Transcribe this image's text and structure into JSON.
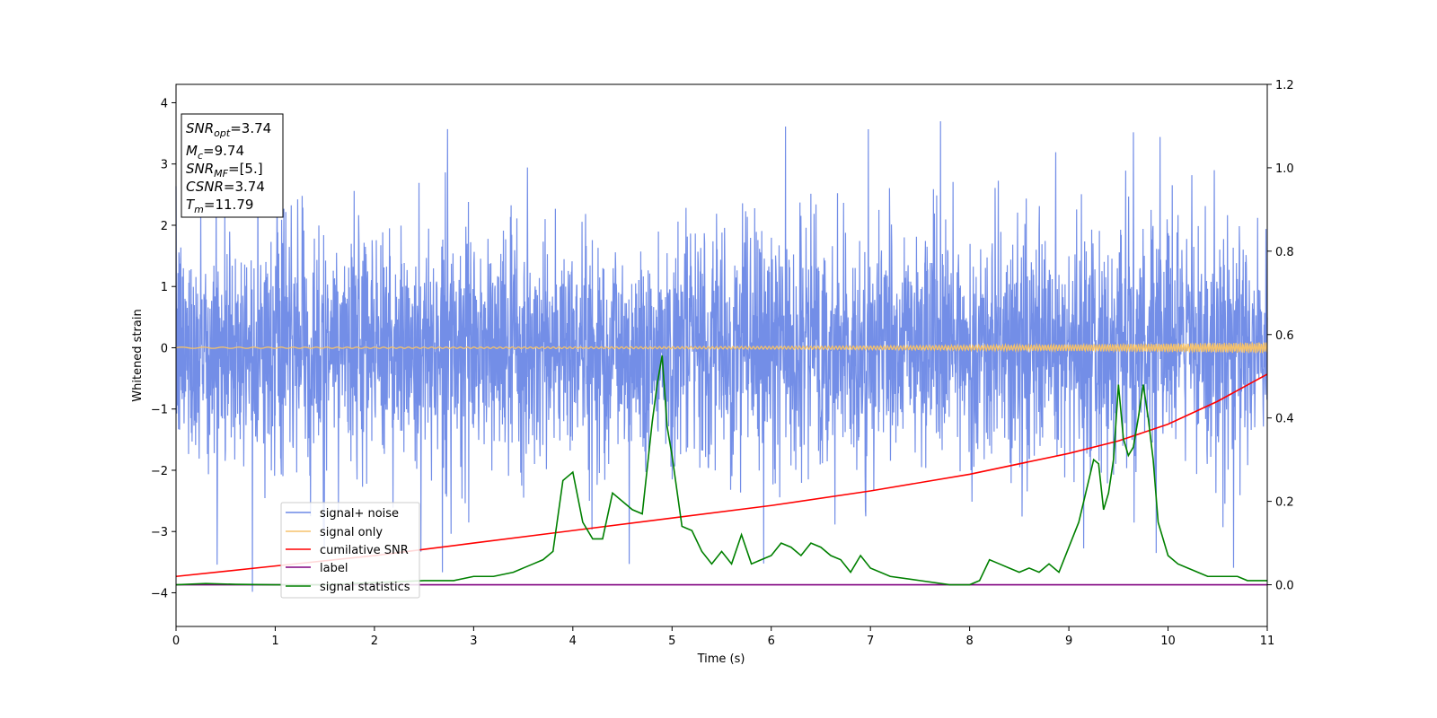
{
  "chart_data": {
    "type": "line",
    "xlabel": "Time (s)",
    "ylabel": "Whitened strain",
    "xlim": [
      0,
      11
    ],
    "ylim_left": [
      -4.55,
      4.3
    ],
    "ylim_right": [
      -0.1,
      1.2
    ],
    "x_ticks": [
      0,
      1,
      2,
      3,
      4,
      5,
      6,
      7,
      8,
      9,
      10,
      11
    ],
    "y_left_ticks": [
      -4,
      -3,
      -2,
      -1,
      0,
      1,
      2,
      3,
      4
    ],
    "y_right_ticks": [
      0.0,
      0.2,
      0.4,
      0.6,
      0.8,
      1.0,
      1.2
    ],
    "x_tick_labels": [
      "0",
      "1",
      "2",
      "3",
      "4",
      "5",
      "6",
      "7",
      "8",
      "9",
      "10",
      "11"
    ],
    "y_left_tick_labels": [
      "−4",
      "−3",
      "−2",
      "−1",
      "0",
      "1",
      "2",
      "3",
      "4"
    ],
    "y_right_tick_labels": [
      "0.0",
      "0.2",
      "0.4",
      "0.6",
      "0.8",
      "1.0",
      "1.2"
    ],
    "grid": false,
    "legend_position": "lower-left",
    "series": [
      {
        "name": "signal+ noise",
        "axis": "left",
        "color": "#6b88e6",
        "style": "dense noise band",
        "noise_band_envelope": [
          -2.4,
          2.2
        ],
        "noise_peak_extremes": [
          -4.15,
          3.9
        ]
      },
      {
        "name": "signal only",
        "axis": "left",
        "color": "#f5c26b",
        "style": "chirp",
        "amplitude_start": 0.01,
        "amplitude_end": 0.09
      },
      {
        "name": "cumilative SNR",
        "axis": "right",
        "color": "#ff0000",
        "x": [
          0,
          1,
          2,
          3,
          4,
          5,
          6,
          7,
          8,
          9,
          9.5,
          10,
          10.5,
          11
        ],
        "y": [
          0.02,
          0.045,
          0.07,
          0.1,
          0.13,
          0.16,
          0.19,
          0.225,
          0.265,
          0.315,
          0.345,
          0.385,
          0.44,
          0.505
        ]
      },
      {
        "name": "label",
        "axis": "right",
        "color": "#800080",
        "x": [
          0,
          11
        ],
        "y": [
          0.0,
          0.0
        ]
      },
      {
        "name": "signal statistics",
        "axis": "right",
        "color": "#008000",
        "x": [
          0,
          0.3,
          0.6,
          1,
          1.5,
          2,
          2.5,
          2.8,
          3,
          3.2,
          3.4,
          3.5,
          3.6,
          3.7,
          3.8,
          3.9,
          4,
          4.1,
          4.2,
          4.3,
          4.4,
          4.5,
          4.6,
          4.7,
          4.8,
          4.85,
          4.9,
          4.95,
          5,
          5.1,
          5.2,
          5.3,
          5.4,
          5.5,
          5.6,
          5.7,
          5.8,
          5.9,
          6,
          6.1,
          6.2,
          6.3,
          6.4,
          6.5,
          6.6,
          6.7,
          6.8,
          6.9,
          7,
          7.2,
          7.5,
          7.8,
          8,
          8.1,
          8.2,
          8.3,
          8.4,
          8.5,
          8.6,
          8.7,
          8.8,
          8.9,
          9,
          9.1,
          9.2,
          9.25,
          9.3,
          9.35,
          9.4,
          9.45,
          9.5,
          9.55,
          9.6,
          9.65,
          9.7,
          9.75,
          9.8,
          9.85,
          9.9,
          10,
          10.1,
          10.2,
          10.3,
          10.4,
          10.5,
          10.6,
          10.7,
          10.8,
          10.9,
          11
        ],
        "y": [
          0.0,
          0.003,
          0.001,
          0.0,
          0.0,
          0.005,
          0.01,
          0.01,
          0.02,
          0.02,
          0.03,
          0.04,
          0.05,
          0.06,
          0.08,
          0.25,
          0.27,
          0.15,
          0.11,
          0.11,
          0.22,
          0.2,
          0.18,
          0.17,
          0.39,
          0.48,
          0.55,
          0.38,
          0.31,
          0.14,
          0.13,
          0.08,
          0.05,
          0.08,
          0.05,
          0.12,
          0.05,
          0.06,
          0.07,
          0.1,
          0.09,
          0.07,
          0.1,
          0.09,
          0.07,
          0.06,
          0.03,
          0.07,
          0.04,
          0.02,
          0.01,
          0.0,
          0.0,
          0.01,
          0.06,
          0.05,
          0.04,
          0.03,
          0.04,
          0.03,
          0.05,
          0.03,
          0.09,
          0.15,
          0.25,
          0.3,
          0.29,
          0.18,
          0.22,
          0.3,
          0.48,
          0.35,
          0.31,
          0.33,
          0.4,
          0.48,
          0.4,
          0.3,
          0.15,
          0.07,
          0.05,
          0.04,
          0.03,
          0.02,
          0.02,
          0.02,
          0.02,
          0.01,
          0.01,
          0.01
        ]
      }
    ]
  },
  "info_box": {
    "lines": [
      {
        "var": "SNR",
        "sub": "opt",
        "value": "=3.74"
      },
      {
        "var": "M",
        "sub": "c",
        "value": "=9.74"
      },
      {
        "var": "SNR",
        "sub": "MF",
        "value": "=[5.]"
      },
      {
        "var": "CSNR",
        "sub": "",
        "value": "=3.74"
      },
      {
        "var": "T",
        "sub": "m",
        "value": "=11.79"
      }
    ]
  }
}
